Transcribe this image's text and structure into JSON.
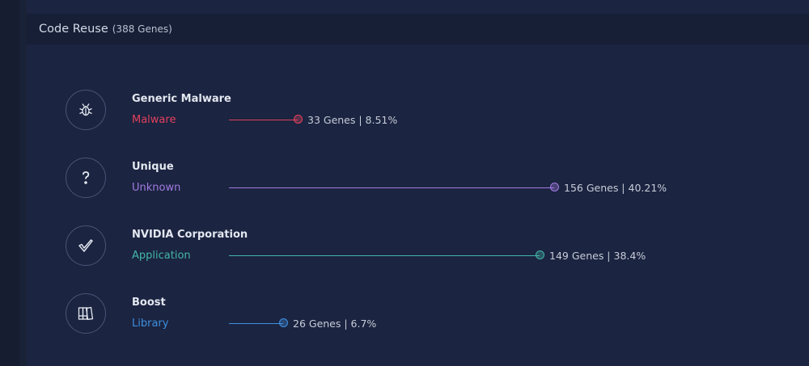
{
  "header": {
    "title": "Code Reuse",
    "count": "(388 Genes)"
  },
  "rows": [
    {
      "name": "Generic Malware",
      "category": "Malware",
      "stats": "33 Genes | 8.51%",
      "fraction": 0.0851,
      "color": "#e0415e",
      "icon": "bug-icon"
    },
    {
      "name": "Unique",
      "category": "Unknown",
      "stats": "156 Genes | 40.21%",
      "fraction": 0.4021,
      "color": "#a27ae3",
      "icon": "question-icon"
    },
    {
      "name": "NVIDIA Corporation",
      "category": "Application",
      "stats": "149 Genes | 38.4%",
      "fraction": 0.384,
      "color": "#43b6a8",
      "icon": "checkmark-icon"
    },
    {
      "name": "Boost",
      "category": "Library",
      "stats": "26 Genes | 6.7%",
      "fraction": 0.067,
      "color": "#3e8fe0",
      "icon": "library-icon"
    }
  ]
}
